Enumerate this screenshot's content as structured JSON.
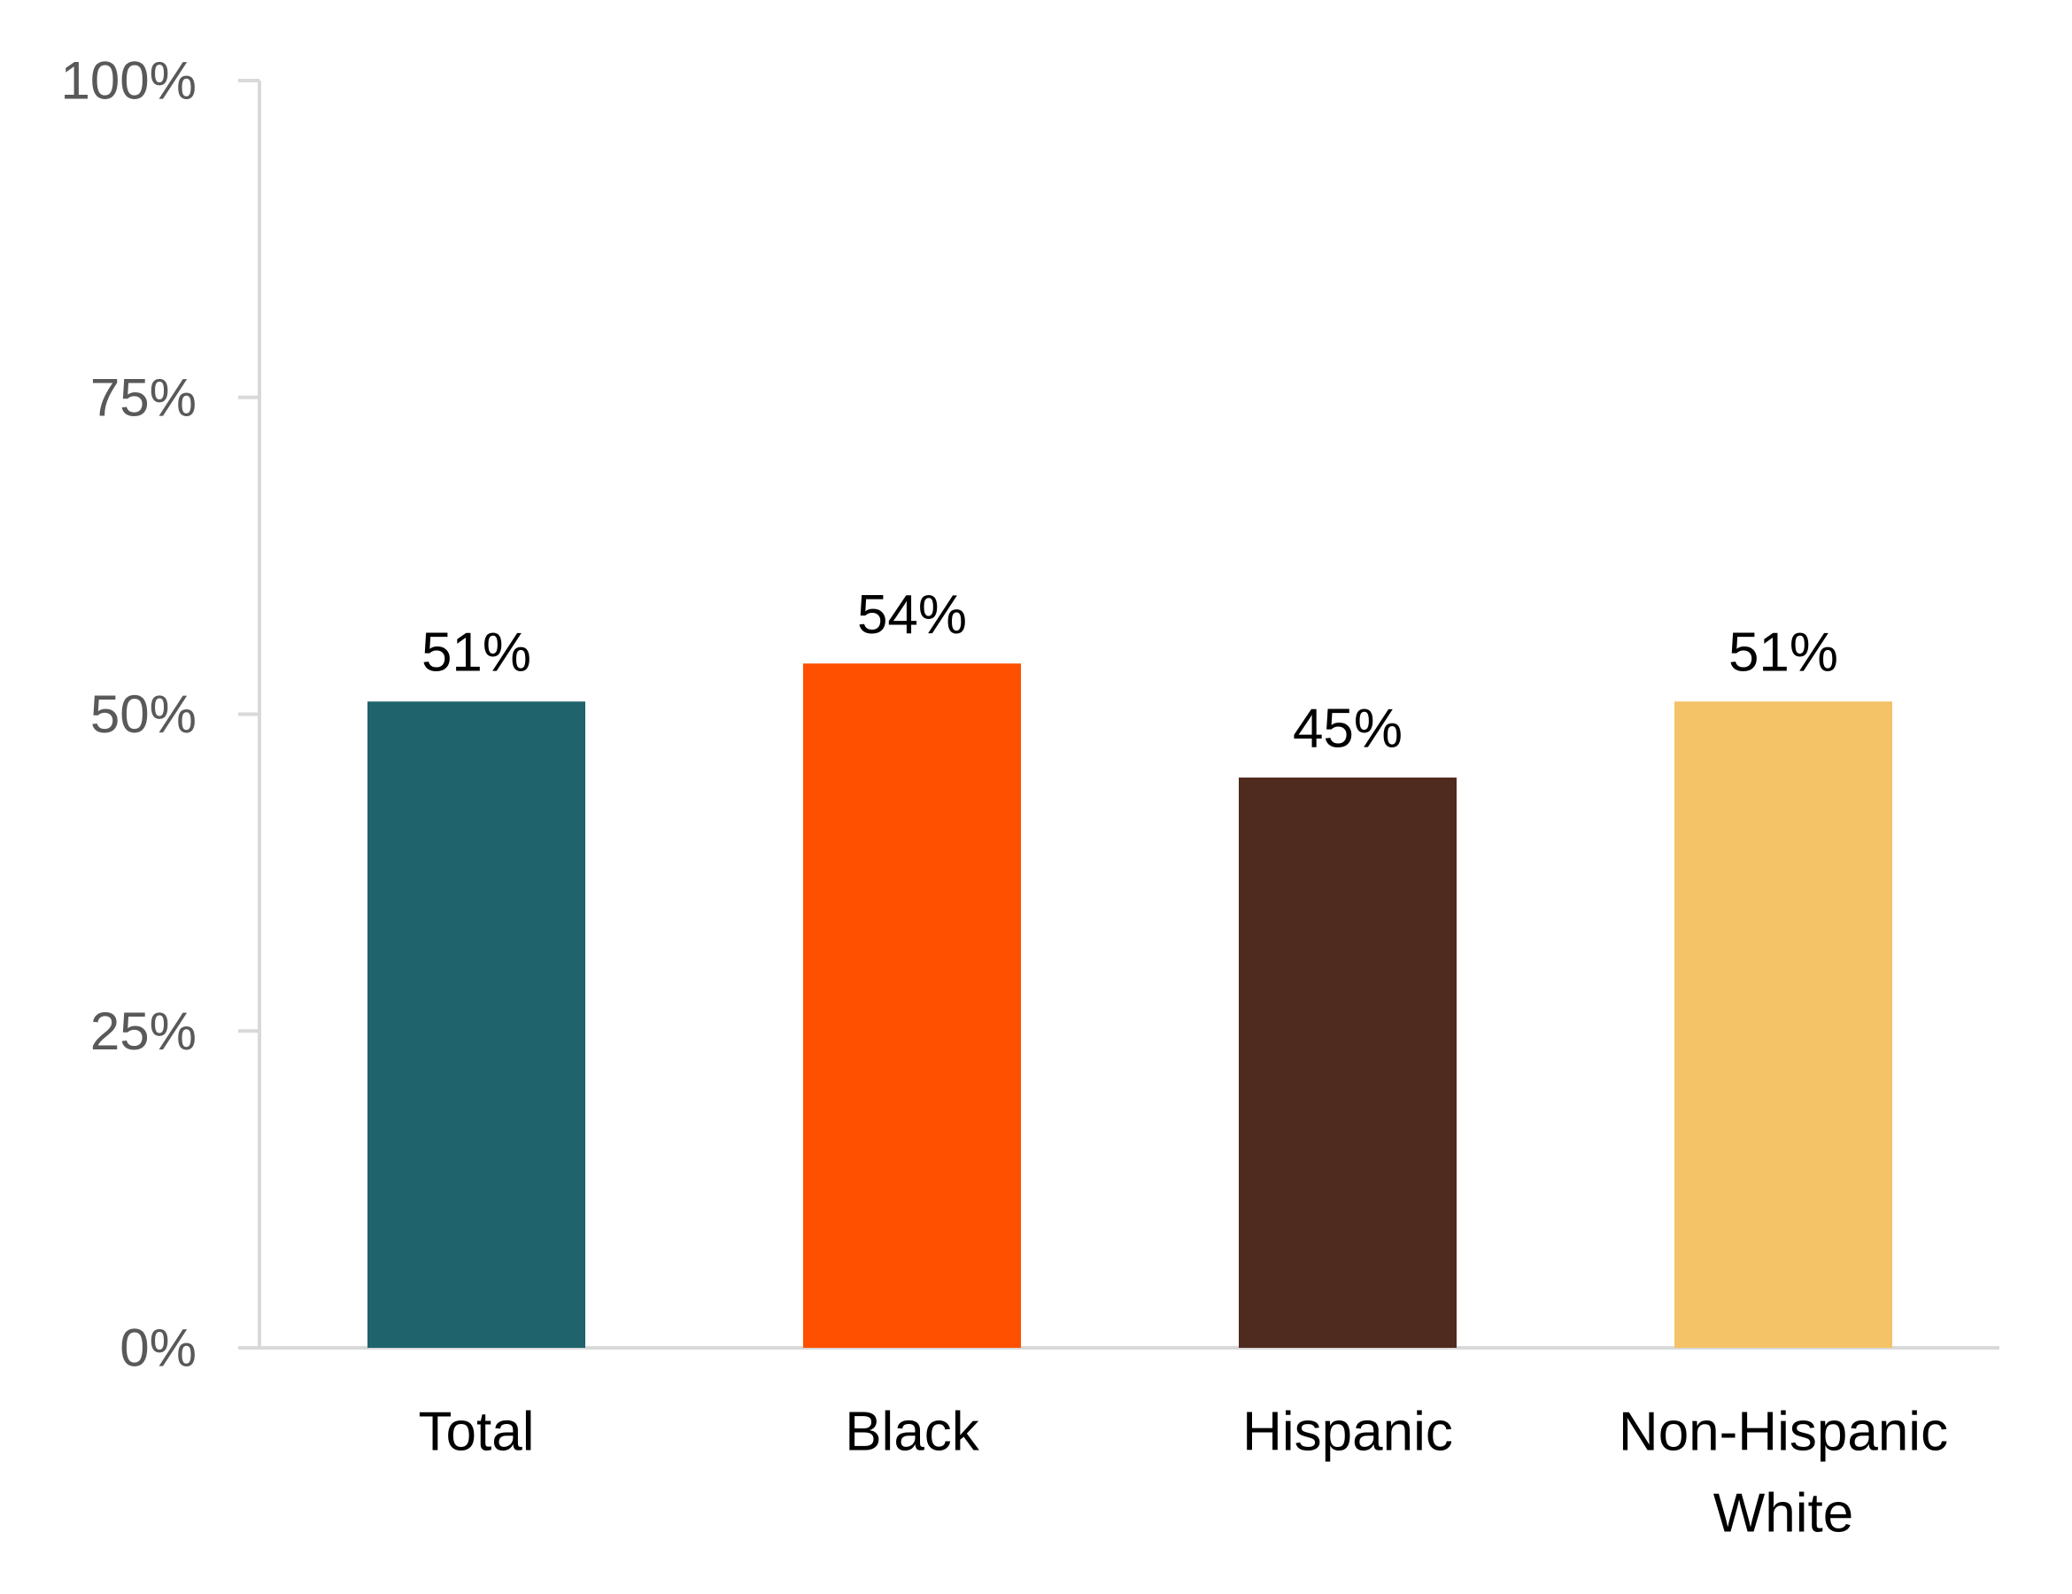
{
  "chart_data": {
    "type": "bar",
    "title": "",
    "xlabel": "",
    "ylabel": "",
    "categories": [
      [
        "Total"
      ],
      [
        "Black"
      ],
      [
        "Hispanic"
      ],
      [
        "Non-Hispanic",
        "White"
      ]
    ],
    "values": [
      51,
      54,
      45,
      51
    ],
    "value_labels": [
      "51%",
      "54%",
      "45%",
      "51%"
    ],
    "bar_colors": [
      "#1F636C",
      "#FF5000",
      "#4F2A1F",
      "#F4C267"
    ],
    "ylim": [
      0,
      100
    ],
    "yticks": [
      0,
      25,
      50,
      75,
      100
    ],
    "ytick_labels": [
      "0%",
      "25%",
      "50%",
      "75%",
      "100%"
    ],
    "grid": false,
    "legend": "none",
    "axis_color": "#D9D9D9"
  }
}
